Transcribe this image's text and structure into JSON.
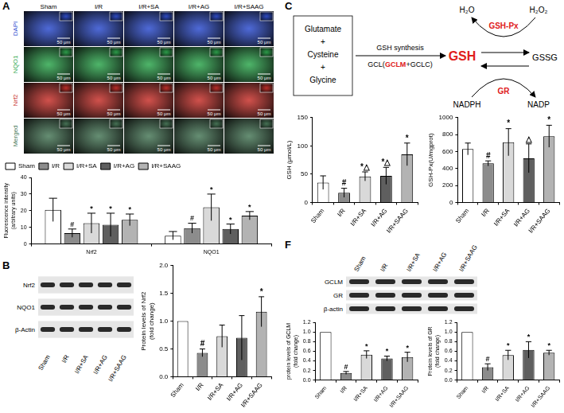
{
  "chart_data": [
    {
      "type": "bar",
      "y_label": [
        "Fluorescence intensity",
        "(arbitrary units)"
      ],
      "categories": [
        "Nrf2",
        "NQO1"
      ],
      "series": [
        {
          "name": "Sham",
          "color": "#ffffff",
          "values": [
            20.5,
            5
          ],
          "errors": [
            7,
            2.5
          ],
          "significance": [
            null,
            null
          ]
        },
        {
          "name": "I/R",
          "color": "#8c8c8c",
          "values": [
            6.5,
            9.5
          ],
          "errors": [
            2.5,
            3
          ],
          "significance": [
            "#",
            "#"
          ]
        },
        {
          "name": "I/R+SA",
          "color": "#d9d9d9",
          "values": [
            12.5,
            22
          ],
          "errors": [
            6,
            8
          ],
          "significance": [
            "*",
            "*"
          ]
        },
        {
          "name": "I/R+AG",
          "color": "#5f5f5f",
          "values": [
            11.5,
            9
          ],
          "errors": [
            7,
            3
          ],
          "significance": [
            "*",
            "*"
          ]
        },
        {
          "name": "I/R+SAAG",
          "color": "#b3b3b3",
          "values": [
            14.5,
            17
          ],
          "errors": [
            3.5,
            2.5
          ],
          "significance": [
            "*",
            "*"
          ]
        }
      ],
      "ylim": [
        0,
        40
      ],
      "yticks": [
        0,
        10,
        20,
        30,
        40
      ],
      "grid": false,
      "legend": "top"
    },
    {
      "type": "bar",
      "y_label": [
        "Protein levels of Nrf2",
        "(fold change)"
      ],
      "categories": [
        "Sham",
        "I/R",
        "I/R+SA",
        "I/R+AG",
        "I/R+SAAG"
      ],
      "values": [
        1.0,
        0.43,
        0.73,
        0.7,
        1.17
      ],
      "errors": [
        null,
        0.07,
        0.2,
        0.4,
        0.27
      ],
      "significance": [
        null,
        "#",
        null,
        null,
        "*"
      ],
      "colors": [
        "#ffffff",
        "#8c8c8c",
        "#d9d9d9",
        "#5f5f5f",
        "#b3b3b3"
      ],
      "ylim": [
        0,
        2
      ],
      "yticks": [
        {
          "value": 0,
          "label": "0.0"
        },
        {
          "value": 0.5,
          "label": "0.5"
        },
        {
          "value": 1,
          "label": "1.0"
        },
        {
          "value": 1.5,
          "label": "1.5"
        },
        {
          "value": 2,
          "label": "2.0"
        }
      ],
      "grid": false
    },
    {
      "type": "bar",
      "y_label": "GSH (μmol/L)",
      "categories": [
        "Sham",
        "I/R",
        "I/R+SA",
        "I/R+AG",
        "I/R+SAAG"
      ],
      "values": [
        35,
        17,
        46,
        47,
        85
      ],
      "errors": [
        12,
        8,
        8,
        15,
        20
      ],
      "significance": [
        null,
        "#",
        "*△",
        "*△",
        "*"
      ],
      "colors": [
        "#ffffff",
        "#8c8c8c",
        "#d9d9d9",
        "#5f5f5f",
        "#b3b3b3"
      ],
      "ylim": [
        0,
        150
      ],
      "yticks": [
        0,
        50,
        100,
        150
      ],
      "grid": false
    },
    {
      "type": "bar",
      "y_label": "GSH-Px(U/mgprot)",
      "categories": [
        "Sham",
        "I/R",
        "I/R+SA",
        "I/R+AG",
        "I/R+SAAG"
      ],
      "values": [
        630,
        460,
        710,
        520,
        780
      ],
      "errors": [
        70,
        30,
        160,
        170,
        130
      ],
      "significance": [
        null,
        "#",
        "*",
        "△",
        "*"
      ],
      "colors": [
        "#ffffff",
        "#8c8c8c",
        "#d9d9d9",
        "#5f5f5f",
        "#b3b3b3"
      ],
      "ylim": [
        0,
        1000
      ],
      "yticks": [
        0,
        200,
        400,
        600,
        800,
        1000
      ],
      "grid": false
    },
    {
      "type": "bar",
      "y_label": [
        "protein levels of GCLM",
        "(fold change)"
      ],
      "categories": [
        "Sham",
        "I/R",
        "I/R+SA",
        "I/R+AG",
        "I/R+SAAG"
      ],
      "values": [
        1.0,
        0.15,
        0.53,
        0.45,
        0.48
      ],
      "errors": [
        null,
        0.03,
        0.08,
        0.05,
        0.1
      ],
      "significance": [
        null,
        "#",
        "*",
        "*",
        "*"
      ],
      "colors": [
        "#ffffff",
        "#8c8c8c",
        "#d9d9d9",
        "#5f5f5f",
        "#b3b3b3"
      ],
      "ylim": [
        0,
        1.2
      ],
      "yticks": [
        {
          "value": 0,
          "label": "0.0"
        },
        {
          "value": 0.2,
          "label": "0.2"
        },
        {
          "value": 0.4,
          "label": "0.4"
        },
        {
          "value": 0.6,
          "label": "0.6"
        },
        {
          "value": 0.8,
          "label": "0.8"
        },
        {
          "value": 1,
          "label": "1.0"
        },
        {
          "value": 1.2,
          "label": "1.2"
        }
      ],
      "grid": false
    },
    {
      "type": "bar",
      "y_label": [
        "Protein levels of GR",
        "(fold change)"
      ],
      "categories": [
        "Sham",
        "I/R",
        "I/R+SA",
        "I/R+AG",
        "I/R+SAAG"
      ],
      "values": [
        1.0,
        0.27,
        0.52,
        0.63,
        0.57
      ],
      "errors": [
        null,
        0.07,
        0.1,
        0.17,
        0.05
      ],
      "significance": [
        null,
        "#",
        "*",
        "*",
        "*"
      ],
      "colors": [
        "#ffffff",
        "#8c8c8c",
        "#d9d9d9",
        "#5f5f5f",
        "#b3b3b3"
      ],
      "ylim": [
        0,
        1.2
      ],
      "yticks": [
        {
          "value": 0,
          "label": "0.0"
        },
        {
          "value": 0.2,
          "label": "0.2"
        },
        {
          "value": 0.4,
          "label": "0.4"
        },
        {
          "value": 0.6,
          "label": "0.6"
        },
        {
          "value": 0.8,
          "label": "0.8"
        },
        {
          "value": 1,
          "label": "1.0"
        },
        {
          "value": 1.2,
          "label": "1.2"
        }
      ],
      "grid": false
    }
  ],
  "images": {
    "panel": "A",
    "columns": [
      "Sham",
      "I/R",
      "I/R+SA",
      "I/R+AG",
      "I/R+SAAG"
    ],
    "rows": [
      {
        "name": "DAPI",
        "color": "#2f4fd0"
      },
      {
        "name": "NQO1",
        "color": "#2fa84f"
      },
      {
        "name": "Nrf2",
        "color": "#c8322c"
      },
      {
        "name": "Merged",
        "color": "#4a7a5a"
      }
    ],
    "scale_bar": "50 μm"
  },
  "blots": [
    {
      "panel": "B",
      "lanes": [
        "Sham",
        "I/R",
        "I/R+SA",
        "I/R+AG",
        "I/R+SAAG"
      ],
      "bands": [
        "Nrf2",
        "NQO1",
        "β-Actin"
      ]
    },
    {
      "panel": "F",
      "lanes": [
        "Sham",
        "I/R",
        "I/R+SA",
        "I/R+AG",
        "I/R+SAAG"
      ],
      "bands": [
        "GCLM",
        "GR",
        "β-actin"
      ]
    }
  ],
  "diagram": {
    "panel": "C",
    "substrates": [
      "Glutamate",
      "Cysteine",
      "Glycine"
    ],
    "joiner": "+",
    "process": "GSH synthesis",
    "enzyme": [
      "GCL(",
      "GCLM",
      "+GCLC)"
    ],
    "product": "GSH",
    "oxidized": "GSSG",
    "peroxidase": {
      "name": "GSH-Px",
      "left": "H₂O",
      "right": "H₂O₂"
    },
    "reductase": {
      "name": "GR",
      "left": "NADPH",
      "right": "NADP"
    }
  }
}
